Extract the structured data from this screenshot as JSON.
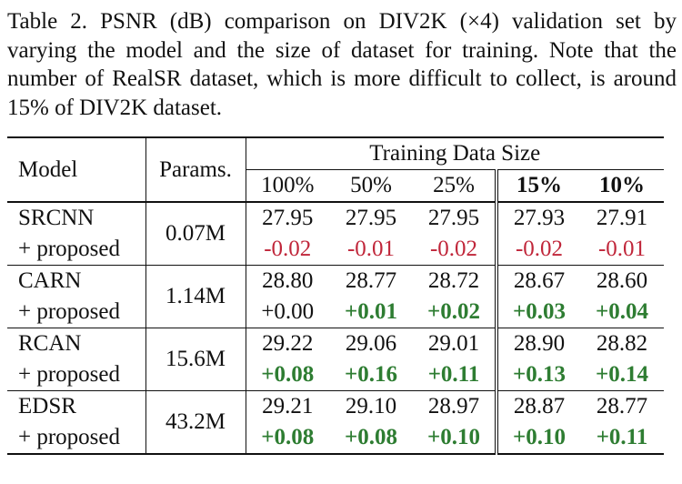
{
  "caption": "Table 2. PSNR (dB) comparison on DIV2K (×4) validation set by varying the model and the size of dataset for training. Note that the number of RealSR dataset, which is more difficult to collect, is around 15% of DIV2K dataset.",
  "table": {
    "header": {
      "model": "Model",
      "params": "Params.",
      "group": "Training Data Size",
      "sizes": [
        "100%",
        "50%",
        "25%",
        "15%",
        "10%"
      ]
    },
    "groups": [
      {
        "model": "SRCNN",
        "params": "0.07M",
        "proposed_label": "+ proposed",
        "base": [
          "27.95",
          "27.95",
          "27.95",
          "27.93",
          "27.91"
        ],
        "delta": [
          "-0.02",
          "-0.01",
          "-0.02",
          "-0.02",
          "-0.01"
        ],
        "delta_kind": [
          "neg",
          "neg",
          "neg",
          "neg",
          "neg"
        ]
      },
      {
        "model": "CARN",
        "params": "1.14M",
        "proposed_label": "+ proposed",
        "base": [
          "28.80",
          "28.77",
          "28.72",
          "28.67",
          "28.60"
        ],
        "delta": [
          "+0.00",
          "+0.01",
          "+0.02",
          "+0.03",
          "+0.04"
        ],
        "delta_kind": [
          "neutral",
          "pos",
          "pos",
          "pos",
          "pos"
        ]
      },
      {
        "model": "RCAN",
        "params": "15.6M",
        "proposed_label": "+ proposed",
        "base": [
          "29.22",
          "29.06",
          "29.01",
          "28.90",
          "28.82"
        ],
        "delta": [
          "+0.08",
          "+0.16",
          "+0.11",
          "+0.13",
          "+0.14"
        ],
        "delta_kind": [
          "pos",
          "pos",
          "pos",
          "pos",
          "pos"
        ]
      },
      {
        "model": "EDSR",
        "params": "43.2M",
        "proposed_label": "+ proposed",
        "base": [
          "29.21",
          "29.10",
          "28.97",
          "28.87",
          "28.77"
        ],
        "delta": [
          "+0.08",
          "+0.08",
          "+0.10",
          "+0.10",
          "+0.11"
        ],
        "delta_kind": [
          "pos",
          "pos",
          "pos",
          "pos",
          "pos"
        ]
      }
    ],
    "colors": {
      "negative": "#c0263a",
      "positive": "#2e7d32"
    }
  }
}
